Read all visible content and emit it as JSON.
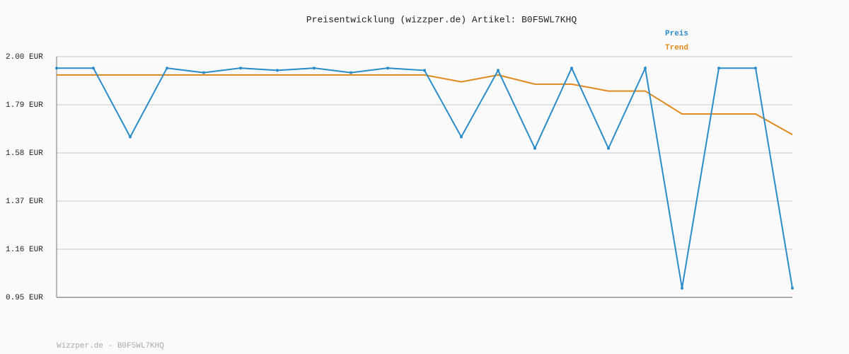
{
  "chart_data": {
    "type": "line",
    "title": "Preisentwicklung (wizzper.de) Artikel: B0F5WL7KHQ",
    "series": [
      {
        "name": "Preis",
        "color": "#2a8cc8",
        "values": [
          1.95,
          1.95,
          1.65,
          1.95,
          1.93,
          1.95,
          1.94,
          1.95,
          1.93,
          1.95,
          1.94,
          1.65,
          1.94,
          1.6,
          1.95,
          1.6,
          1.95,
          0.99,
          1.95,
          1.95,
          0.99
        ]
      },
      {
        "name": "Trend",
        "color": "#e0891e",
        "values": [
          1.92,
          1.92,
          1.92,
          1.92,
          1.92,
          1.92,
          1.92,
          1.92,
          1.92,
          1.92,
          1.92,
          1.89,
          1.92,
          1.88,
          1.88,
          1.85,
          1.85,
          1.75,
          1.75,
          1.75,
          1.66
        ]
      }
    ],
    "ylim": [
      0.95,
      2.0
    ],
    "yticks": [
      {
        "value": 2.0,
        "label": "2.00 EUR"
      },
      {
        "value": 1.79,
        "label": "1.79 EUR"
      },
      {
        "value": 1.58,
        "label": "1.58 EUR"
      },
      {
        "value": 1.37,
        "label": "1.37 EUR"
      },
      {
        "value": 1.16,
        "label": "1.16 EUR"
      },
      {
        "value": 0.95,
        "label": "0.95 EUR"
      }
    ],
    "grid": true,
    "legend": "top-right",
    "footer": "Wizzper.de - B0F5WL7KHQ"
  }
}
